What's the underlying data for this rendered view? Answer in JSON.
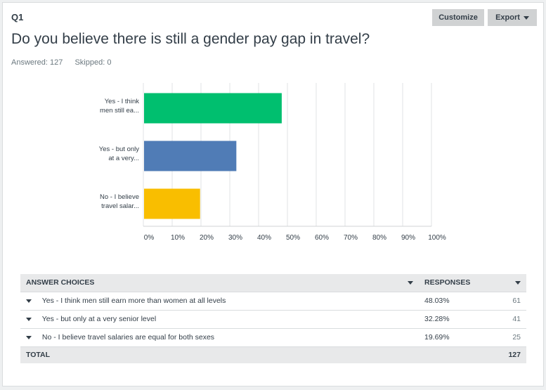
{
  "question": {
    "number": "Q1",
    "title": "Do you believe there is still a gender pay gap in travel?",
    "answered_label": "Answered: 127",
    "skipped_label": "Skipped: 0"
  },
  "toolbar": {
    "customize_label": "Customize",
    "export_label": "Export"
  },
  "colors": {
    "bar_1": "#00bf6f",
    "bar_2": "#507cb6",
    "bar_3": "#f9be00",
    "grid": "#e1e3e4",
    "header_bg": "#e8e9ea"
  },
  "chart_data": {
    "type": "bar",
    "orientation": "horizontal",
    "categories": [
      "Yes - I think men still ea...",
      "Yes - but only at a very...",
      "No - I believe travel salar..."
    ],
    "category_lines": [
      [
        "Yes - I think",
        "men still ea..."
      ],
      [
        "Yes - but only",
        "at a very..."
      ],
      [
        "No - I believe",
        "travel salar..."
      ]
    ],
    "values": [
      48.03,
      32.28,
      19.69
    ],
    "xlim": [
      0,
      100
    ],
    "x_ticks": [
      "0%",
      "10%",
      "20%",
      "30%",
      "40%",
      "50%",
      "60%",
      "70%",
      "80%",
      "90%",
      "100%"
    ],
    "grid": true,
    "title": "",
    "xlabel": "",
    "ylabel": ""
  },
  "table": {
    "headers": {
      "choices": "ANSWER CHOICES",
      "responses": "RESPONSES"
    },
    "rows": [
      {
        "choice": "Yes - I think men still earn more than women at all levels",
        "percent": "48.03%",
        "count": "61"
      },
      {
        "choice": "Yes - but only at a very senior level",
        "percent": "32.28%",
        "count": "41"
      },
      {
        "choice": "No - I believe travel salaries are equal for both sexes",
        "percent": "19.69%",
        "count": "25"
      }
    ],
    "total_label": "TOTAL",
    "total_count": "127"
  }
}
